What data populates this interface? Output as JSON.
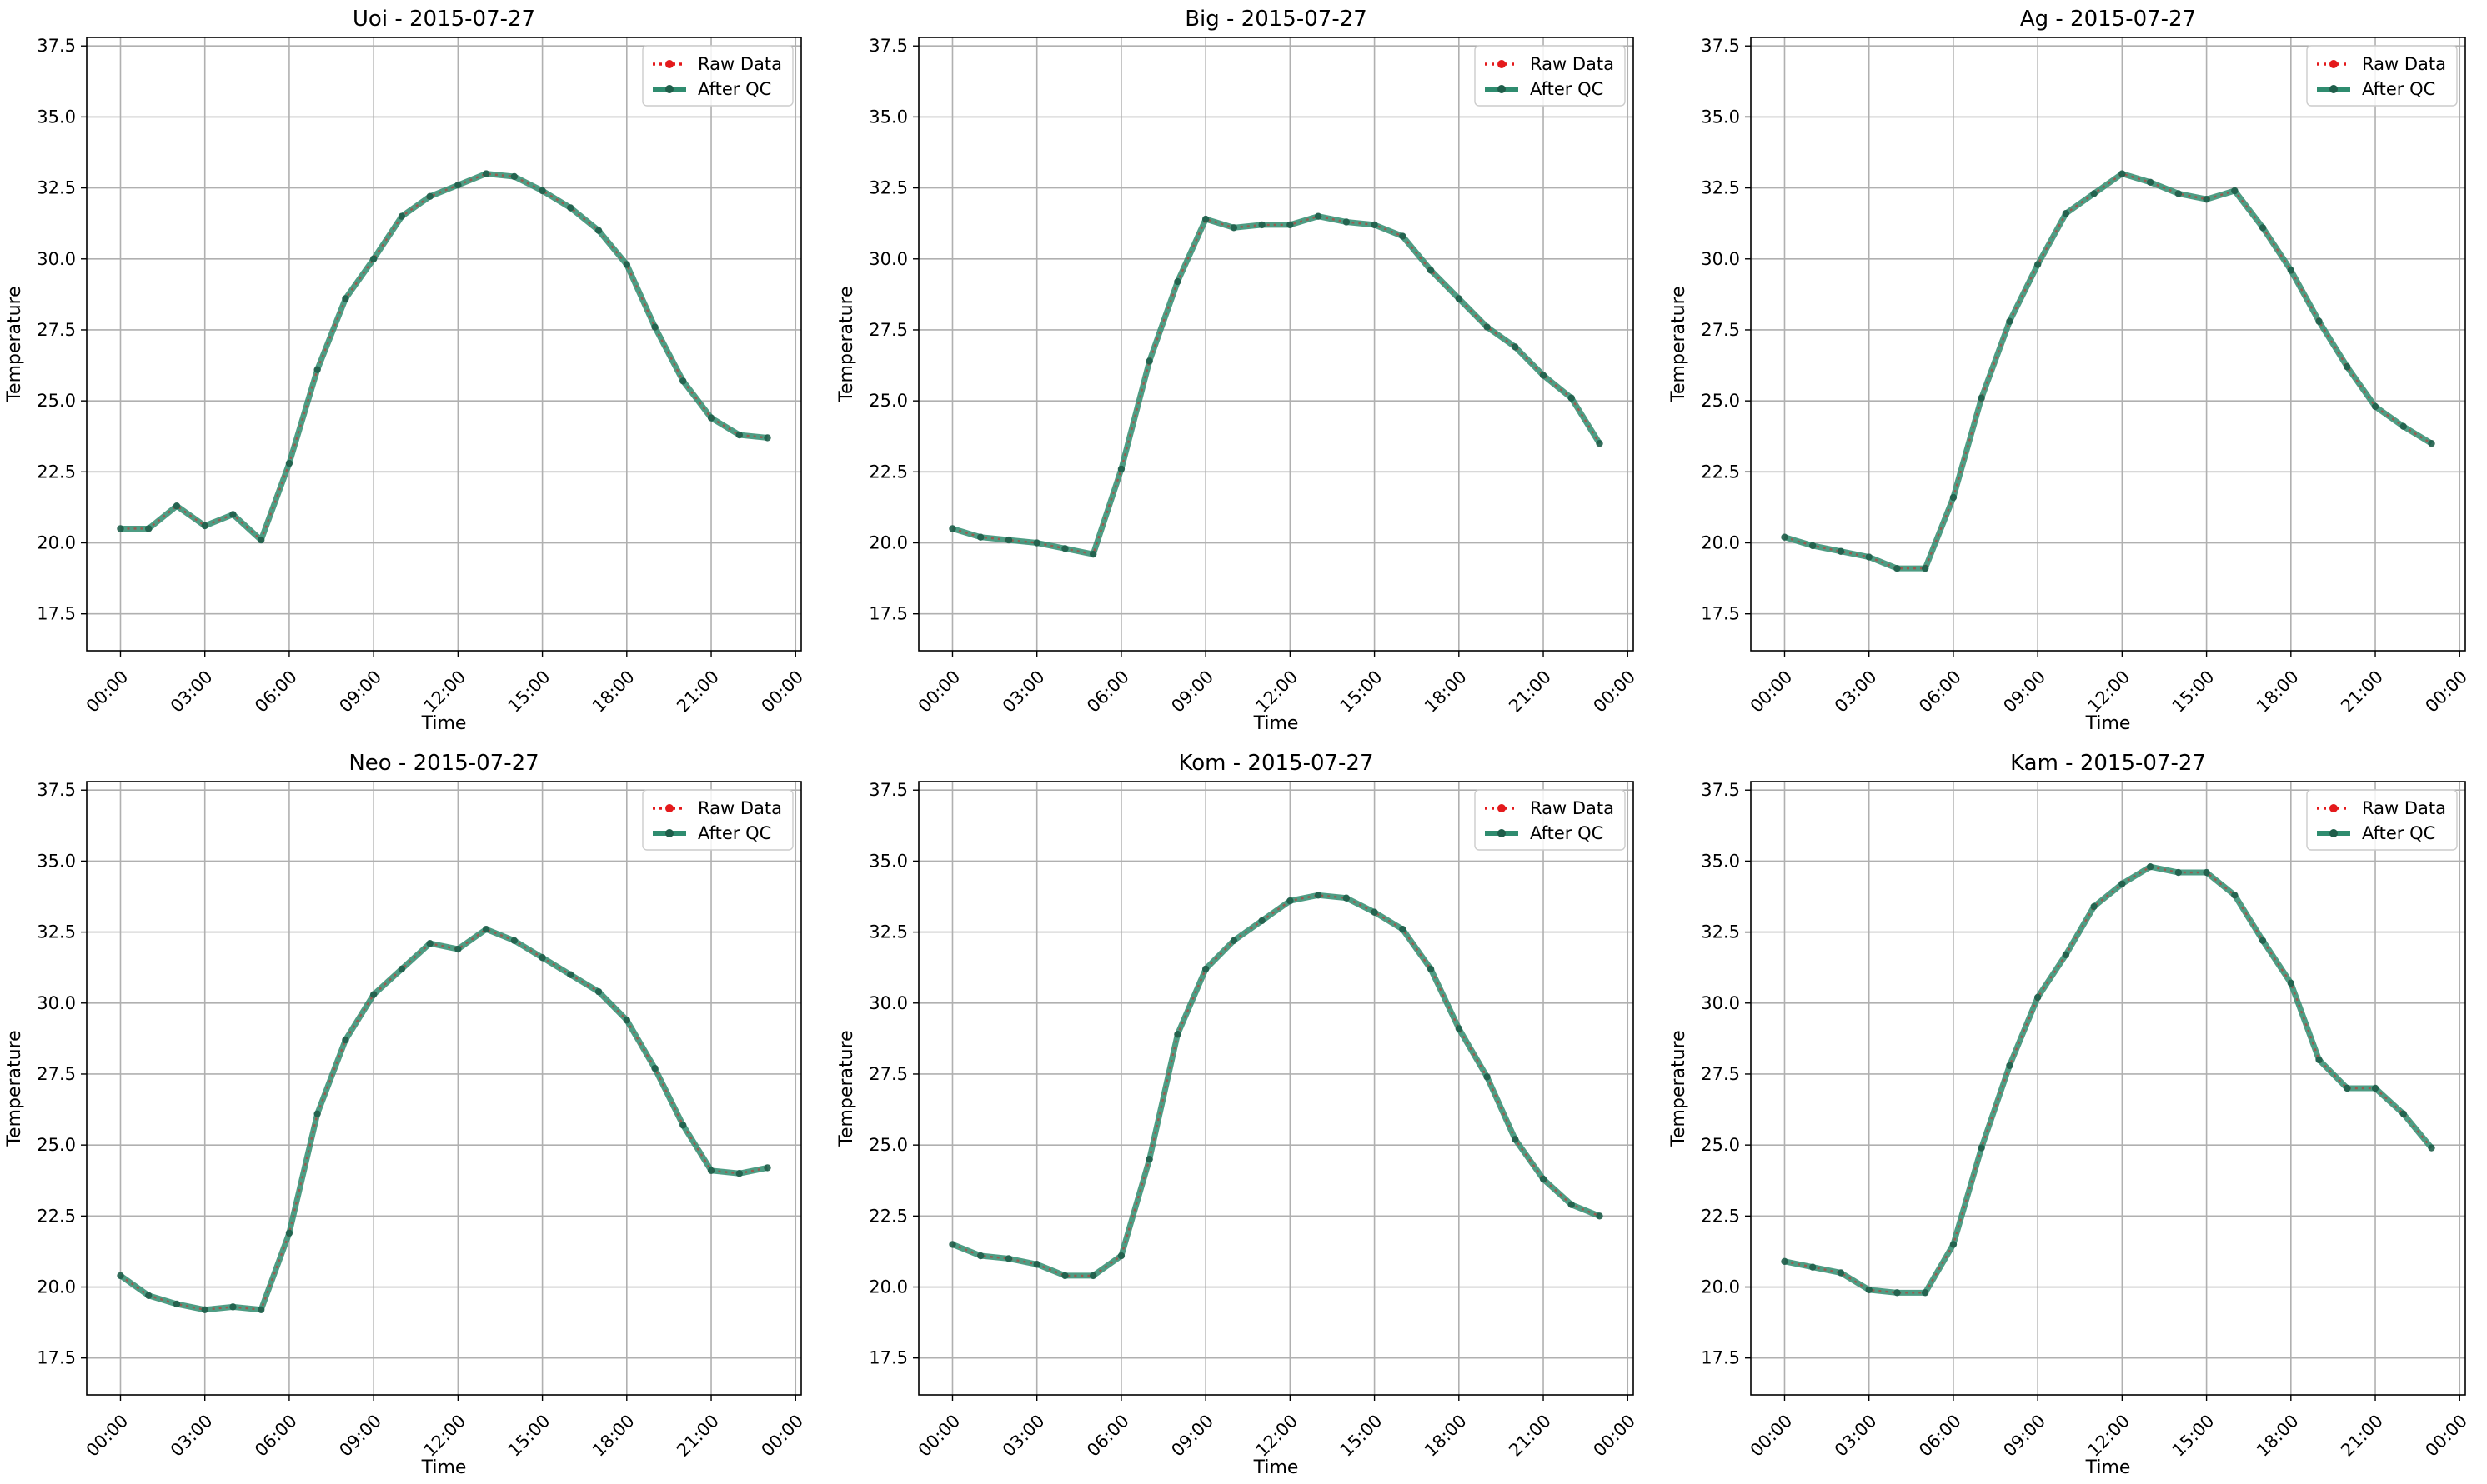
{
  "figure": {
    "legend_labels": {
      "raw": "Raw Data",
      "qc": "After QC"
    },
    "colors": {
      "raw": "#e41a1c",
      "qc": "#2f8c6f",
      "grid": "#b0b0b0"
    },
    "layout": "2x3 grid of line charts"
  },
  "chart_data": [
    {
      "type": "line",
      "title": "Uoi - 2015-07-27",
      "xlabel": "Time",
      "ylabel": "Temperature",
      "x_ticks": [
        "00:00",
        "03:00",
        "06:00",
        "09:00",
        "12:00",
        "15:00",
        "18:00",
        "21:00",
        "00:00"
      ],
      "y_ticks": [
        "17.5",
        "20.0",
        "22.5",
        "25.0",
        "27.5",
        "30.0",
        "32.5",
        "35.0",
        "37.5"
      ],
      "ylim": [
        16.2,
        37.8
      ],
      "xlim_hours": [
        -1.2,
        24.2
      ],
      "grid": true,
      "legend_position": "upper right",
      "x_hours": [
        0,
        1,
        2,
        3,
        4,
        5,
        6,
        7,
        8,
        9,
        10,
        11,
        12,
        13,
        14,
        15,
        16,
        17,
        18,
        19,
        20,
        21,
        22,
        23
      ],
      "series": [
        {
          "name": "Raw Data",
          "values": [
            20.5,
            20.5,
            21.3,
            20.6,
            21.0,
            20.1,
            22.8,
            26.1,
            28.6,
            30.0,
            31.5,
            32.2,
            32.6,
            33.0,
            32.9,
            32.4,
            31.8,
            31.0,
            29.8,
            27.6,
            25.7,
            24.4,
            23.8,
            23.7
          ]
        },
        {
          "name": "After QC",
          "values": [
            20.5,
            20.5,
            21.3,
            20.6,
            21.0,
            20.1,
            22.8,
            26.1,
            28.6,
            30.0,
            31.5,
            32.2,
            32.6,
            33.0,
            32.9,
            32.4,
            31.8,
            31.0,
            29.8,
            27.6,
            25.7,
            24.4,
            23.8,
            23.7
          ]
        }
      ]
    },
    {
      "type": "line",
      "title": "Big - 2015-07-27",
      "xlabel": "Time",
      "ylabel": "Temperature",
      "x_ticks": [
        "00:00",
        "03:00",
        "06:00",
        "09:00",
        "12:00",
        "15:00",
        "18:00",
        "21:00",
        "00:00"
      ],
      "y_ticks": [
        "17.5",
        "20.0",
        "22.5",
        "25.0",
        "27.5",
        "30.0",
        "32.5",
        "35.0",
        "37.5"
      ],
      "ylim": [
        16.2,
        37.8
      ],
      "xlim_hours": [
        -1.2,
        24.2
      ],
      "grid": true,
      "legend_position": "upper right",
      "x_hours": [
        0,
        1,
        2,
        3,
        4,
        5,
        6,
        7,
        8,
        9,
        10,
        11,
        12,
        13,
        14,
        15,
        16,
        17,
        18,
        19,
        20,
        21,
        22,
        23
      ],
      "series": [
        {
          "name": "Raw Data",
          "values": [
            20.5,
            20.2,
            20.1,
            20.0,
            19.8,
            19.6,
            22.6,
            26.4,
            29.2,
            31.4,
            31.1,
            31.2,
            31.2,
            31.5,
            31.3,
            31.2,
            30.8,
            29.6,
            28.6,
            27.6,
            26.9,
            25.9,
            25.1,
            23.5
          ]
        },
        {
          "name": "After QC",
          "values": [
            20.5,
            20.2,
            20.1,
            20.0,
            19.8,
            19.6,
            22.6,
            26.4,
            29.2,
            31.4,
            31.1,
            31.2,
            31.2,
            31.5,
            31.3,
            31.2,
            30.8,
            29.6,
            28.6,
            27.6,
            26.9,
            25.9,
            25.1,
            23.5
          ]
        }
      ]
    },
    {
      "type": "line",
      "title": "Ag - 2015-07-27",
      "xlabel": "Time",
      "ylabel": "Temperature",
      "x_ticks": [
        "00:00",
        "03:00",
        "06:00",
        "09:00",
        "12:00",
        "15:00",
        "18:00",
        "21:00",
        "00:00"
      ],
      "y_ticks": [
        "17.5",
        "20.0",
        "22.5",
        "25.0",
        "27.5",
        "30.0",
        "32.5",
        "35.0",
        "37.5"
      ],
      "ylim": [
        16.2,
        37.8
      ],
      "xlim_hours": [
        -1.2,
        24.2
      ],
      "grid": true,
      "legend_position": "upper right",
      "x_hours": [
        0,
        1,
        2,
        3,
        4,
        5,
        6,
        7,
        8,
        9,
        10,
        11,
        12,
        13,
        14,
        15,
        16,
        17,
        18,
        19,
        20,
        21,
        22,
        23
      ],
      "series": [
        {
          "name": "Raw Data",
          "values": [
            20.2,
            19.9,
            19.7,
            19.5,
            19.1,
            19.1,
            21.6,
            25.1,
            27.8,
            29.8,
            31.6,
            32.3,
            33.0,
            32.7,
            32.3,
            32.1,
            32.4,
            31.1,
            29.6,
            27.8,
            26.2,
            24.8,
            24.1,
            23.5
          ]
        },
        {
          "name": "After QC",
          "values": [
            20.2,
            19.9,
            19.7,
            19.5,
            19.1,
            19.1,
            21.6,
            25.1,
            27.8,
            29.8,
            31.6,
            32.3,
            33.0,
            32.7,
            32.3,
            32.1,
            32.4,
            31.1,
            29.6,
            27.8,
            26.2,
            24.8,
            24.1,
            23.5
          ]
        }
      ]
    },
    {
      "type": "line",
      "title": "Neo - 2015-07-27",
      "xlabel": "Time",
      "ylabel": "Temperature",
      "x_ticks": [
        "00:00",
        "03:00",
        "06:00",
        "09:00",
        "12:00",
        "15:00",
        "18:00",
        "21:00",
        "00:00"
      ],
      "y_ticks": [
        "17.5",
        "20.0",
        "22.5",
        "25.0",
        "27.5",
        "30.0",
        "32.5",
        "35.0",
        "37.5"
      ],
      "ylim": [
        16.2,
        37.8
      ],
      "xlim_hours": [
        -1.2,
        24.2
      ],
      "grid": true,
      "legend_position": "upper right",
      "x_hours": [
        0,
        1,
        2,
        3,
        4,
        5,
        6,
        7,
        8,
        9,
        10,
        11,
        12,
        13,
        14,
        15,
        16,
        17,
        18,
        19,
        20,
        21,
        22,
        23
      ],
      "series": [
        {
          "name": "Raw Data",
          "values": [
            20.4,
            19.7,
            19.4,
            19.2,
            19.3,
            19.2,
            21.9,
            26.1,
            28.7,
            30.3,
            31.2,
            32.1,
            31.9,
            32.6,
            32.2,
            31.6,
            31.0,
            30.4,
            29.4,
            27.7,
            25.7,
            24.1,
            24.0,
            24.2
          ]
        },
        {
          "name": "After QC",
          "values": [
            20.4,
            19.7,
            19.4,
            19.2,
            19.3,
            19.2,
            21.9,
            26.1,
            28.7,
            30.3,
            31.2,
            32.1,
            31.9,
            32.6,
            32.2,
            31.6,
            31.0,
            30.4,
            29.4,
            27.7,
            25.7,
            24.1,
            24.0,
            24.2
          ]
        }
      ]
    },
    {
      "type": "line",
      "title": "Kom - 2015-07-27",
      "xlabel": "Time",
      "ylabel": "Temperature",
      "x_ticks": [
        "00:00",
        "03:00",
        "06:00",
        "09:00",
        "12:00",
        "15:00",
        "18:00",
        "21:00",
        "00:00"
      ],
      "y_ticks": [
        "17.5",
        "20.0",
        "22.5",
        "25.0",
        "27.5",
        "30.0",
        "32.5",
        "35.0",
        "37.5"
      ],
      "ylim": [
        16.2,
        37.8
      ],
      "xlim_hours": [
        -1.2,
        24.2
      ],
      "grid": true,
      "legend_position": "upper right",
      "x_hours": [
        0,
        1,
        2,
        3,
        4,
        5,
        6,
        7,
        8,
        9,
        10,
        11,
        12,
        13,
        14,
        15,
        16,
        17,
        18,
        19,
        20,
        21,
        22,
        23
      ],
      "series": [
        {
          "name": "Raw Data",
          "values": [
            21.5,
            21.1,
            21.0,
            20.8,
            20.4,
            20.4,
            21.1,
            24.5,
            28.9,
            31.2,
            32.2,
            32.9,
            33.6,
            33.8,
            33.7,
            33.2,
            32.6,
            31.2,
            29.1,
            27.4,
            25.2,
            23.8,
            22.9,
            22.5
          ]
        },
        {
          "name": "After QC",
          "values": [
            21.5,
            21.1,
            21.0,
            20.8,
            20.4,
            20.4,
            21.1,
            24.5,
            28.9,
            31.2,
            32.2,
            32.9,
            33.6,
            33.8,
            33.7,
            33.2,
            32.6,
            31.2,
            29.1,
            27.4,
            25.2,
            23.8,
            22.9,
            22.5
          ]
        }
      ]
    },
    {
      "type": "line",
      "title": "Kam - 2015-07-27",
      "xlabel": "Time",
      "ylabel": "Temperature",
      "x_ticks": [
        "00:00",
        "03:00",
        "06:00",
        "09:00",
        "12:00",
        "15:00",
        "18:00",
        "21:00",
        "00:00"
      ],
      "y_ticks": [
        "17.5",
        "20.0",
        "22.5",
        "25.0",
        "27.5",
        "30.0",
        "32.5",
        "35.0",
        "37.5"
      ],
      "ylim": [
        16.2,
        37.8
      ],
      "xlim_hours": [
        -1.2,
        24.2
      ],
      "grid": true,
      "legend_position": "upper right",
      "x_hours": [
        0,
        1,
        2,
        3,
        4,
        5,
        6,
        7,
        8,
        9,
        10,
        11,
        12,
        13,
        14,
        15,
        16,
        17,
        18,
        19,
        20,
        21,
        22,
        23
      ],
      "series": [
        {
          "name": "Raw Data",
          "values": [
            20.9,
            20.7,
            20.5,
            19.9,
            19.8,
            19.8,
            21.5,
            24.9,
            27.8,
            30.2,
            31.7,
            33.4,
            34.2,
            34.8,
            34.6,
            34.6,
            33.8,
            32.2,
            30.7,
            28.0,
            27.0,
            27.0,
            26.1,
            24.9
          ]
        },
        {
          "name": "After QC",
          "values": [
            20.9,
            20.7,
            20.5,
            19.9,
            19.8,
            19.8,
            21.5,
            24.9,
            27.8,
            30.2,
            31.7,
            33.4,
            34.2,
            34.8,
            34.6,
            34.6,
            33.8,
            32.2,
            30.7,
            28.0,
            27.0,
            27.0,
            26.1,
            24.9
          ]
        }
      ]
    }
  ]
}
